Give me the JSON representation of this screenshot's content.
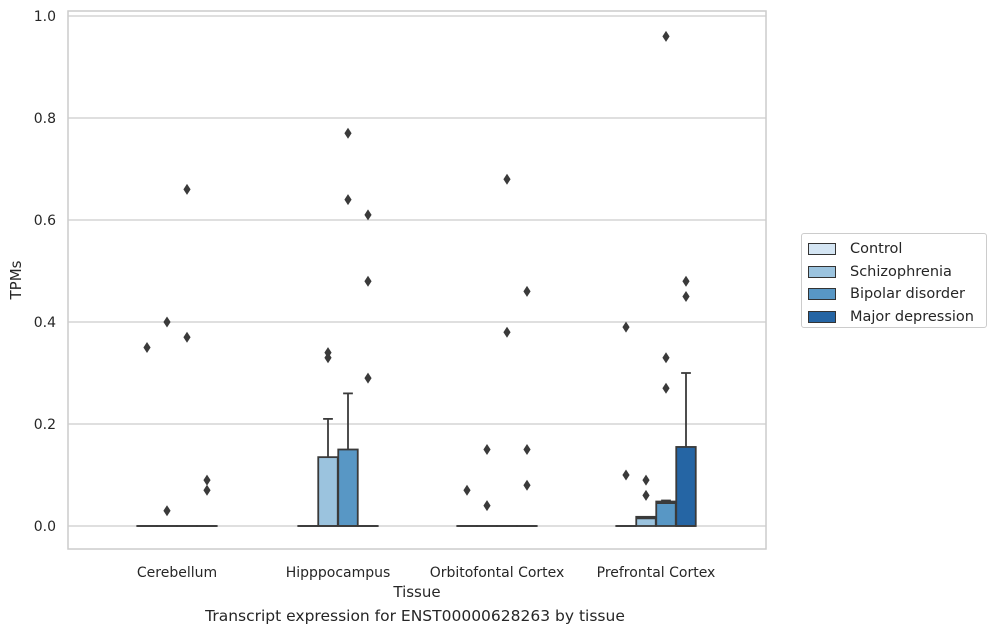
{
  "caption": "Transcript expression for ENST00000628263 by tissue",
  "colors": {
    "Control": "#d4e5f3",
    "Schizophrenia": "#9bc3de",
    "Bipolar disorder": "#5897c5",
    "Major depression": "#2565a4",
    "grid": "#cccccc",
    "edge": "#3a3a3a"
  },
  "chart_data": {
    "type": "box",
    "title": "",
    "xlabel": "Tissue",
    "ylabel": "TPMs",
    "ylim": [
      -0.045,
      1.01
    ],
    "yticks": [
      0.0,
      0.2,
      0.4,
      0.6,
      0.8,
      1.0
    ],
    "ytick_labels": [
      "0.0",
      "0.2",
      "0.4",
      "0.6",
      "0.8",
      "1.0"
    ],
    "grid": true,
    "legend_position": "right",
    "categories": [
      "Cerebellum",
      "Hipppocampus",
      "Orbitofontal Cortex",
      "Prefrontal Cortex"
    ],
    "series": [
      {
        "name": "Control",
        "boxes": [
          {
            "q1": 0,
            "median": 0,
            "q3": 0,
            "whislo": 0,
            "whishi": 0,
            "fliers": [
              0.35
            ]
          },
          {
            "q1": 0,
            "median": 0,
            "q3": 0,
            "whislo": 0,
            "whishi": 0,
            "fliers": []
          },
          {
            "q1": 0,
            "median": 0,
            "q3": 0,
            "whislo": 0,
            "whishi": 0,
            "fliers": [
              0.07
            ]
          },
          {
            "q1": 0,
            "median": 0,
            "q3": 0,
            "whislo": 0,
            "whishi": 0,
            "fliers": [
              0.39,
              0.1
            ]
          }
        ]
      },
      {
        "name": "Schizophrenia",
        "boxes": [
          {
            "q1": 0,
            "median": 0,
            "q3": 0,
            "whislo": 0,
            "whishi": 0,
            "fliers": [
              0.4,
              0.03
            ]
          },
          {
            "q1": 0,
            "median": 0,
            "q3": 0.135,
            "whislo": 0,
            "whishi": 0.21,
            "fliers": [
              0.34,
              0.33
            ]
          },
          {
            "q1": 0,
            "median": 0,
            "q3": 0,
            "whislo": 0,
            "whishi": 0,
            "fliers": [
              0.15,
              0.04
            ]
          },
          {
            "q1": 0,
            "median": 0.015,
            "q3": 0.018,
            "whislo": 0,
            "whishi": 0.018,
            "fliers": [
              0.09,
              0.06
            ]
          }
        ]
      },
      {
        "name": "Bipolar disorder",
        "boxes": [
          {
            "q1": 0,
            "median": 0,
            "q3": 0,
            "whislo": 0,
            "whishi": 0,
            "fliers": [
              0.66,
              0.37
            ]
          },
          {
            "q1": 0,
            "median": 0,
            "q3": 0.15,
            "whislo": 0,
            "whishi": 0.26,
            "fliers": [
              0.77,
              0.64
            ]
          },
          {
            "q1": 0,
            "median": 0,
            "q3": 0,
            "whislo": 0,
            "whishi": 0,
            "fliers": [
              0.68,
              0.38
            ]
          },
          {
            "q1": 0,
            "median": 0.045,
            "q3": 0.048,
            "whislo": 0,
            "whishi": 0.05,
            "fliers": [
              0.96,
              0.33,
              0.27
            ]
          }
        ]
      },
      {
        "name": "Major depression",
        "boxes": [
          {
            "q1": 0,
            "median": 0,
            "q3": 0,
            "whislo": 0,
            "whishi": 0,
            "fliers": [
              0.09,
              0.07
            ]
          },
          {
            "q1": 0,
            "median": 0,
            "q3": 0,
            "whislo": 0,
            "whishi": 0,
            "fliers": [
              0.61,
              0.48,
              0.29
            ]
          },
          {
            "q1": 0,
            "median": 0,
            "q3": 0,
            "whislo": 0,
            "whishi": 0,
            "fliers": [
              0.46,
              0.15,
              0.08
            ]
          },
          {
            "q1": 0,
            "median": 0,
            "q3": 0.155,
            "whislo": 0,
            "whishi": 0.3,
            "fliers": [
              0.48,
              0.45
            ]
          }
        ]
      }
    ]
  }
}
